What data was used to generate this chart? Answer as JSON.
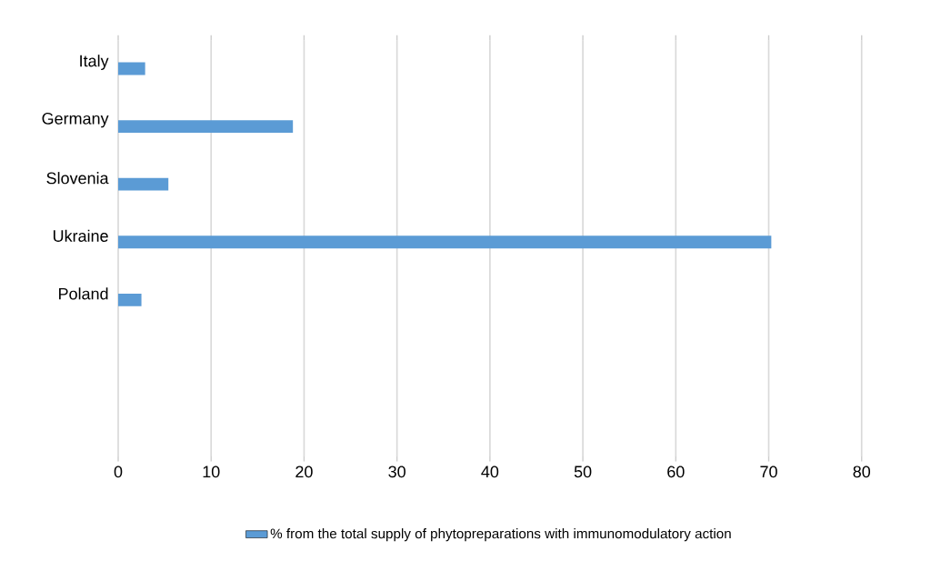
{
  "chart_data": {
    "type": "bar",
    "orientation": "horizontal",
    "categories": [
      "Italy",
      "Germany",
      "Slovenia",
      "Ukraine",
      "Poland",
      null,
      null
    ],
    "series": [
      {
        "name": "% from the total supply of phytopreparations with immunomodulatory action",
        "color": "#5b9bd5",
        "values": [
          2.9,
          18.8,
          5.4,
          70.3,
          2.5,
          null,
          null
        ]
      }
    ],
    "xlim": [
      0,
      80
    ],
    "xticks": [
      0,
      10,
      20,
      30,
      40,
      50,
      60,
      70,
      80
    ],
    "grid": "x",
    "legend": "bottom"
  }
}
